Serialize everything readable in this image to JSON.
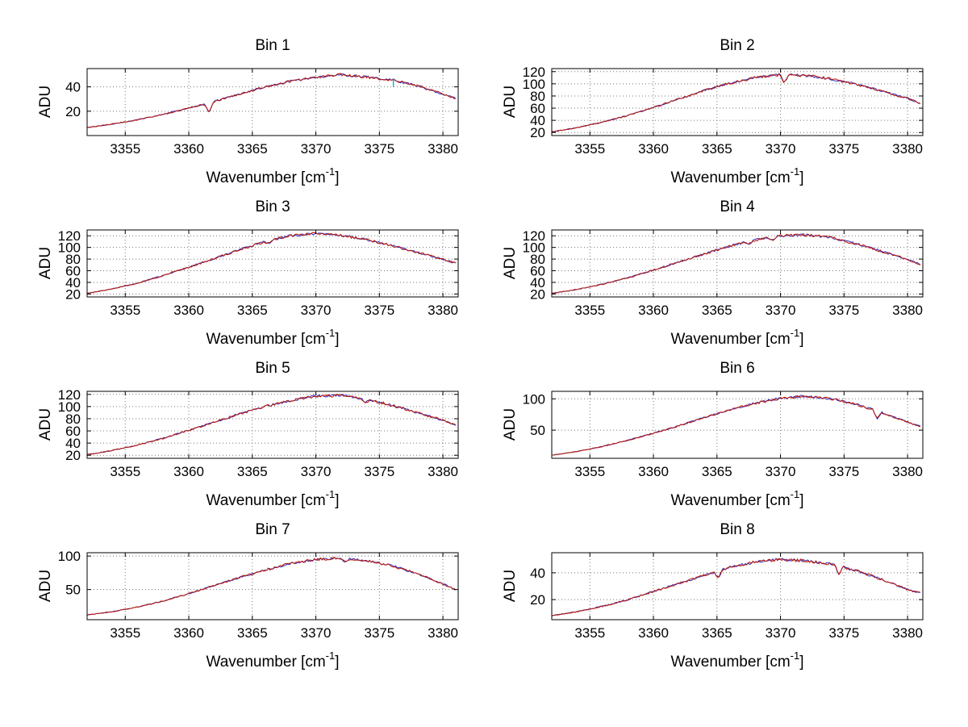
{
  "figure": {
    "background": "#ffffff"
  },
  "chart_data": {
    "type": "line",
    "xlabel_prefix": "Wavenumber [cm",
    "xlabel_sup": "-1",
    "xlabel_suffix": "]",
    "ylabel": "ADU",
    "xlim": [
      3352,
      3381.2
    ],
    "xticks": [
      3355,
      3360,
      3365,
      3370,
      3375,
      3380
    ],
    "x_anchors": [
      3352,
      3354,
      3356,
      3358,
      3360,
      3362,
      3364,
      3366,
      3368,
      3370,
      3372,
      3374,
      3376,
      3378,
      3380,
      3381
    ],
    "grid": true,
    "legend_position": "none",
    "colors": {
      "line_red": "#b81c0c",
      "line_blue": "#2929c8",
      "marker_cyan": "#00b4c8",
      "grid_color": "#787878",
      "axis_color": "#000000"
    },
    "bins": [
      {
        "title": "Bin 1",
        "ylim": [
          0,
          55
        ],
        "yticks": [
          20,
          40
        ],
        "y": [
          6.5,
          9.5,
          13,
          17.5,
          22.5,
          28,
          34,
          40,
          44.5,
          48,
          50,
          48,
          45.5,
          41,
          34,
          30.5
        ],
        "spikes": [
          {
            "x": 3361.6,
            "dy": -8
          }
        ],
        "markers": [
          {
            "x": 3376.1,
            "y1": 40,
            "y2": 47
          }
        ]
      },
      {
        "title": "Bin 2",
        "ylim": [
          15,
          125
        ],
        "yticks": [
          20,
          40,
          60,
          80,
          100,
          120
        ],
        "y": [
          21,
          28,
          37,
          48,
          61,
          75,
          89,
          101,
          110,
          115.5,
          113.5,
          108,
          99,
          88,
          76,
          68
        ],
        "spikes": [
          {
            "x": 3370.3,
            "dy": -14
          }
        ],
        "markers": []
      },
      {
        "title": "Bin 3",
        "ylim": [
          15,
          130
        ],
        "yticks": [
          20,
          40,
          60,
          80,
          100,
          120
        ],
        "y": [
          21,
          29,
          39,
          52,
          66,
          81,
          96,
          110,
          120,
          124.5,
          121,
          113.5,
          103,
          91.5,
          79.5,
          73
        ],
        "spikes": [
          {
            "x": 3366.3,
            "dy": -4
          }
        ],
        "markers": []
      },
      {
        "title": "Bin 4",
        "ylim": [
          15,
          130
        ],
        "yticks": [
          20,
          40,
          60,
          80,
          100,
          120
        ],
        "y": [
          21,
          28,
          37,
          48,
          61,
          75,
          89,
          102,
          113,
          120,
          121.5,
          117,
          106,
          93,
          79.5,
          71
        ],
        "spikes": [
          {
            "x": 3367.5,
            "dy": -5
          },
          {
            "x": 3369.4,
            "dy": -4
          }
        ],
        "markers": []
      },
      {
        "title": "Bin 5",
        "ylim": [
          15,
          125
        ],
        "yticks": [
          20,
          40,
          60,
          80,
          100,
          120
        ],
        "y": [
          21,
          28,
          37,
          48,
          61,
          74,
          88,
          100,
          110,
          117.5,
          118.5,
          112,
          102,
          90,
          77.5,
          69.5
        ],
        "spikes": [
          {
            "x": 3373.9,
            "dy": -5
          }
        ],
        "markers": []
      },
      {
        "title": "Bin 6",
        "ylim": [
          5,
          112
        ],
        "yticks": [
          50,
          100
        ],
        "y": [
          10,
          16,
          24,
          34,
          45,
          57,
          70,
          82,
          93,
          101,
          104.5,
          100,
          91,
          78,
          63,
          56
        ],
        "spikes": [
          {
            "x": 3377.6,
            "dy": -12
          }
        ],
        "markers": []
      },
      {
        "title": "Bin 7",
        "ylim": [
          5,
          105
        ],
        "yticks": [
          50,
          100
        ],
        "y": [
          12,
          17,
          24,
          33,
          44,
          56,
          68,
          79,
          89,
          95,
          97,
          93.5,
          85.5,
          73.5,
          58.5,
          50
        ],
        "spikes": [
          {
            "x": 3372.3,
            "dy": -5
          }
        ],
        "markers": []
      },
      {
        "title": "Bin 8",
        "ylim": [
          5,
          55
        ],
        "yticks": [
          20,
          40
        ],
        "y": [
          8,
          11,
          15,
          20,
          26,
          32,
          38,
          44,
          48,
          50,
          49,
          46.5,
          41.5,
          35,
          27.5,
          25
        ],
        "spikes": [
          {
            "x": 3365.1,
            "dy": -5
          },
          {
            "x": 3374.6,
            "dy": -6
          }
        ],
        "markers": []
      }
    ]
  }
}
